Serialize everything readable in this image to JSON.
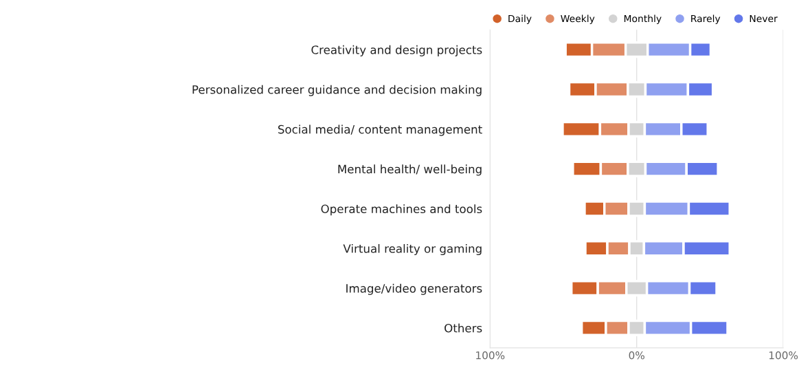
{
  "chart_data": {
    "type": "bar",
    "orientation": "horizontal",
    "categories": [
      "Creativity and design projects",
      "Personalized career guidance and decision making",
      "Social media/ content management",
      "Mental health/ well-being",
      "Operate machines and tools",
      "Virtual reality or gaming",
      "Image/video generators",
      "Others"
    ],
    "series": [
      {
        "name": "Daily",
        "color": "#d2622a",
        "values": [
          18,
          18,
          25.5,
          19,
          13.5,
          15,
          18,
          16.5
        ],
        "base": [
          -48.5,
          -46,
          -50.5,
          -43.5,
          -35.5,
          -35,
          -44.5,
          -37.5
        ]
      },
      {
        "name": "Weekly",
        "color": "#e08b65",
        "values": [
          23,
          22,
          19.5,
          18.5,
          16.5,
          15,
          19.5,
          15.5
        ],
        "base": [
          -30.5,
          -28,
          -25,
          -24.5,
          -22,
          -20,
          -26.5,
          -21
        ]
      },
      {
        "name": "Monthly",
        "color": "#d3d3d3",
        "values": [
          15,
          12,
          11,
          12,
          11,
          10,
          14,
          11
        ],
        "base": [
          -7.5,
          -6,
          -5.5,
          -6,
          -5.5,
          -5,
          -7,
          -5.5
        ]
      },
      {
        "name": "Rarely",
        "color": "#8fa0f0",
        "values": [
          29,
          29,
          25,
          28,
          30,
          27,
          29,
          31.5
        ],
        "base": [
          7.5,
          6,
          5.5,
          6,
          5.5,
          5,
          7,
          5.5
        ]
      },
      {
        "name": "Never",
        "color": "#6378ea",
        "values": [
          14,
          17,
          18,
          21.5,
          28,
          31.5,
          18.5,
          25
        ],
        "base": [
          36.5,
          35,
          30.5,
          34,
          35.5,
          32,
          36,
          37
        ]
      }
    ],
    "xlim": [
      -100,
      100
    ],
    "xticks": [
      {
        "value": -100,
        "label": "100%"
      },
      {
        "value": 0,
        "label": "0%"
      },
      {
        "value": 100,
        "label": "100%"
      }
    ],
    "grid": "x",
    "legend": "top right",
    "marker": "circle"
  }
}
